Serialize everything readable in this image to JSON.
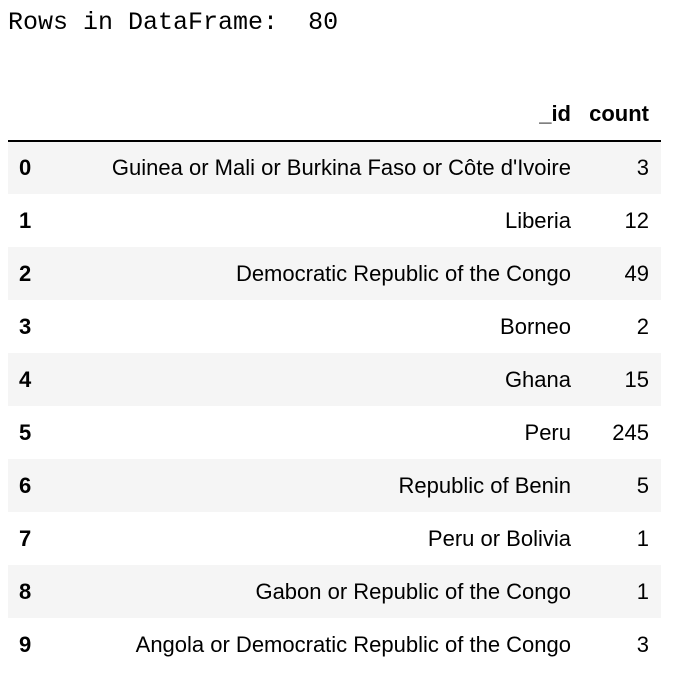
{
  "output": {
    "rows_label": "Rows in DataFrame:",
    "rows_value": "80"
  },
  "table": {
    "index_header": "",
    "columns": [
      "_id",
      "count"
    ],
    "rows": [
      {
        "index": "0",
        "id": "Guinea or Mali or Burkina Faso or Côte d'Ivoire",
        "count": "3"
      },
      {
        "index": "1",
        "id": "Liberia",
        "count": "12"
      },
      {
        "index": "2",
        "id": "Democratic Republic of the Congo",
        "count": "49"
      },
      {
        "index": "3",
        "id": "Borneo",
        "count": "2"
      },
      {
        "index": "4",
        "id": "Ghana",
        "count": "15"
      },
      {
        "index": "5",
        "id": "Peru",
        "count": "245"
      },
      {
        "index": "6",
        "id": "Republic of Benin",
        "count": "5"
      },
      {
        "index": "7",
        "id": "Peru or Bolivia",
        "count": "1"
      },
      {
        "index": "8",
        "id": "Gabon or Republic of the Congo",
        "count": "1"
      },
      {
        "index": "9",
        "id": "Angola or Democratic Republic of the Congo",
        "count": "3"
      }
    ]
  }
}
